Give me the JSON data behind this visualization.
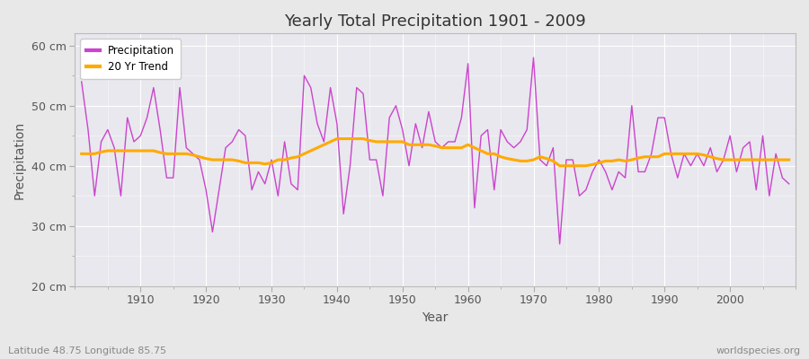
{
  "title": "Yearly Total Precipitation 1901 - 2009",
  "xlabel": "Year",
  "ylabel": "Precipitation",
  "subtitle": "Latitude 48.75 Longitude 85.75",
  "watermark": "worldspecies.org",
  "ylim": [
    20,
    62
  ],
  "yticks": [
    20,
    30,
    40,
    50,
    60
  ],
  "ytick_labels": [
    "20 cm",
    "30 cm",
    "40 cm",
    "50 cm",
    "60 cm"
  ],
  "xlim": [
    1900,
    2010
  ],
  "xticks": [
    1910,
    1920,
    1930,
    1940,
    1950,
    1960,
    1970,
    1980,
    1990,
    2000
  ],
  "precip_color": "#cc44cc",
  "trend_color": "#ffaa00",
  "fig_bg_color": "#e8e8e8",
  "plot_bg_color": "#e8e8ee",
  "legend_precip": "Precipitation",
  "legend_trend": "20 Yr Trend",
  "years": [
    1901,
    1902,
    1903,
    1904,
    1905,
    1906,
    1907,
    1908,
    1909,
    1910,
    1911,
    1912,
    1913,
    1914,
    1915,
    1916,
    1917,
    1918,
    1919,
    1920,
    1921,
    1922,
    1923,
    1924,
    1925,
    1926,
    1927,
    1928,
    1929,
    1930,
    1931,
    1932,
    1933,
    1934,
    1935,
    1936,
    1937,
    1938,
    1939,
    1940,
    1941,
    1942,
    1943,
    1944,
    1945,
    1946,
    1947,
    1948,
    1949,
    1950,
    1951,
    1952,
    1953,
    1954,
    1955,
    1956,
    1957,
    1958,
    1959,
    1960,
    1961,
    1962,
    1963,
    1964,
    1965,
    1966,
    1967,
    1968,
    1969,
    1970,
    1971,
    1972,
    1973,
    1974,
    1975,
    1976,
    1977,
    1978,
    1979,
    1980,
    1981,
    1982,
    1983,
    1984,
    1985,
    1986,
    1987,
    1988,
    1989,
    1990,
    1991,
    1992,
    1993,
    1994,
    1995,
    1996,
    1997,
    1998,
    1999,
    2000,
    2001,
    2002,
    2003,
    2004,
    2005,
    2006,
    2007,
    2008,
    2009
  ],
  "precip": [
    54,
    46,
    35,
    44,
    46,
    43,
    35,
    48,
    44,
    45,
    48,
    53,
    46,
    38,
    38,
    53,
    43,
    42,
    41,
    36,
    29,
    36,
    43,
    44,
    46,
    45,
    36,
    39,
    37,
    41,
    35,
    44,
    37,
    36,
    55,
    53,
    47,
    44,
    53,
    47,
    32,
    40,
    53,
    52,
    41,
    41,
    35,
    48,
    50,
    46,
    40,
    47,
    43,
    49,
    44,
    43,
    44,
    44,
    48,
    57,
    33,
    45,
    46,
    36,
    46,
    44,
    43,
    44,
    46,
    58,
    41,
    40,
    43,
    27,
    41,
    41,
    35,
    36,
    39,
    41,
    39,
    36,
    39,
    38,
    50,
    39,
    39,
    42,
    48,
    48,
    42,
    38,
    42,
    40,
    42,
    40,
    43,
    39,
    41,
    45,
    39,
    43,
    44,
    36,
    45,
    35,
    42,
    38,
    37
  ],
  "trend": [
    42.0,
    42.0,
    42.0,
    42.3,
    42.5,
    42.5,
    42.5,
    42.5,
    42.5,
    42.5,
    42.5,
    42.5,
    42.2,
    42.0,
    42.0,
    42.0,
    42.0,
    41.8,
    41.5,
    41.2,
    41.0,
    41.0,
    41.0,
    41.0,
    40.8,
    40.5,
    40.5,
    40.5,
    40.3,
    40.5,
    41.0,
    41.0,
    41.3,
    41.5,
    42.0,
    42.5,
    43.0,
    43.5,
    44.0,
    44.5,
    44.5,
    44.5,
    44.5,
    44.5,
    44.2,
    44.0,
    44.0,
    44.0,
    44.0,
    44.0,
    43.5,
    43.5,
    43.5,
    43.5,
    43.3,
    43.0,
    43.0,
    43.0,
    43.0,
    43.5,
    43.0,
    42.5,
    42.0,
    42.0,
    41.5,
    41.2,
    41.0,
    40.8,
    40.8,
    41.0,
    41.5,
    41.2,
    40.8,
    40.0,
    40.0,
    40.0,
    40.0,
    40.0,
    40.2,
    40.5,
    40.8,
    40.8,
    41.0,
    40.8,
    41.0,
    41.3,
    41.5,
    41.5,
    41.5,
    42.0,
    42.0,
    42.0,
    42.0,
    42.0,
    42.0,
    41.8,
    41.5,
    41.2,
    41.0,
    41.0,
    41.0,
    41.0,
    41.0,
    41.0,
    41.0,
    41.0,
    41.0,
    41.0,
    41.0
  ]
}
